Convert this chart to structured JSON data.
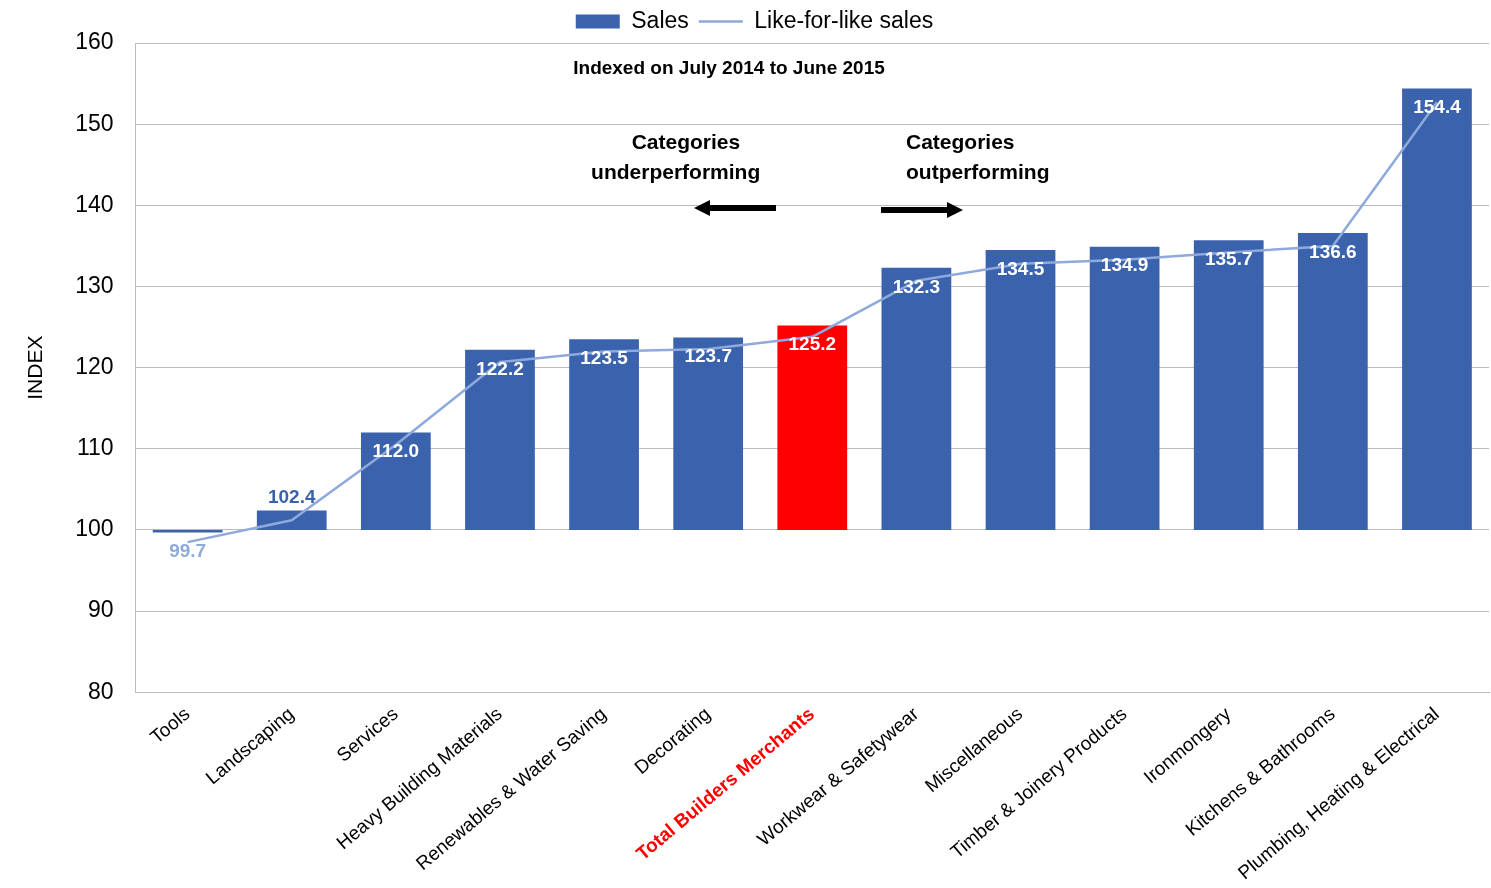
{
  "chart_data": {
    "type": "bar",
    "subtitle": "Indexed on July 2014 to June 2015",
    "ylabel": "INDEX",
    "categories": [
      "Tools",
      "Landscaping",
      "Services",
      "Heavy Building Materials",
      "Renewables & Water Saving",
      "Decorating",
      "Total Builders Merchants",
      "Workwear & Safetywear",
      "Miscellaneous",
      "Timber & Joinery Products",
      "Ironmongery",
      "Kitchens & Bathrooms",
      "Plumbing, Heating & Electrical"
    ],
    "series": [
      {
        "name": "Sales",
        "color": "#3b63ad",
        "colors": [
          "#3b63ad",
          "#3b63ad",
          "#3b63ad",
          "#3b63ad",
          "#3b63ad",
          "#3b63ad",
          "#ff0000",
          "#3b63ad",
          "#3b63ad",
          "#3b63ad",
          "#3b63ad",
          "#3b63ad",
          "#3b63ad"
        ],
        "base": [
          100,
          100,
          100,
          100,
          100,
          100,
          100,
          100,
          100,
          100,
          100,
          100,
          100
        ],
        "values": [
          -0.3,
          2.4,
          12.0,
          22.2,
          23.5,
          23.7,
          25.2,
          32.3,
          34.5,
          34.9,
          35.7,
          36.6,
          54.4
        ],
        "value_labels": [
          "99.7",
          "102.4",
          "112.0",
          "122.2",
          "123.5",
          "123.7",
          "125.2",
          "132.3",
          "134.5",
          "134.9",
          "135.7",
          "136.6",
          "154.4"
        ]
      },
      {
        "name": "Like-for-like sales",
        "type": "line",
        "color": "#8ea9db",
        "values": [
          98.5,
          101.2,
          110.5,
          120.7,
          122,
          122.3,
          123.8,
          130.7,
          132.8,
          133.3,
          134.2,
          135,
          152.7
        ]
      }
    ],
    "ylim": [
      80,
      160
    ],
    "yticks": [
      80,
      90,
      100,
      110,
      120,
      130,
      140,
      150,
      160
    ],
    "grid": "y",
    "legend": "top",
    "marker": "none",
    "annotations": [
      "Categories underperforming",
      "Categories outperforming"
    ]
  }
}
